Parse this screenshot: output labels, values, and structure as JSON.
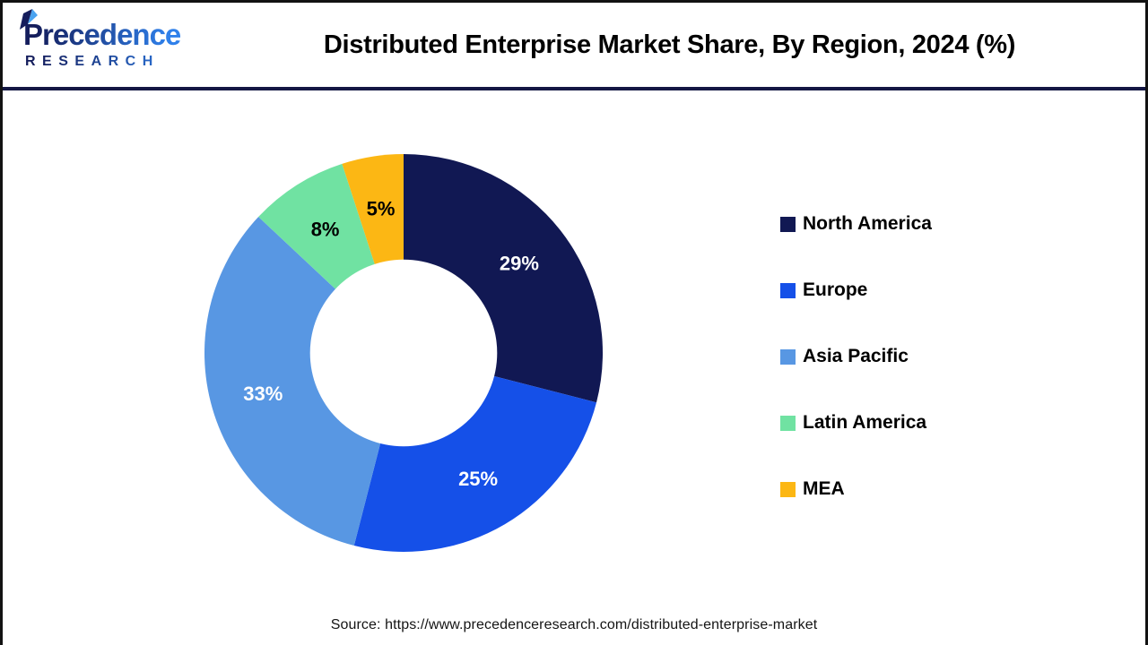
{
  "header": {
    "logo": {
      "name": "Precedence",
      "subname": "RESEARCH"
    },
    "title": "Distributed Enterprise Market Share, By Region, 2024 (%)"
  },
  "chart_data": {
    "type": "pie",
    "donut": true,
    "title": "Distributed Enterprise Market Share, By Region, 2024 (%)",
    "inner_radius_ratio": 0.47,
    "start_angle_deg": 0,
    "direction": "clockwise",
    "categories": [
      "North America",
      "Europe",
      "Asia Pacific",
      "Latin America",
      "MEA"
    ],
    "values": [
      29,
      25,
      33,
      8,
      5
    ],
    "slice_labels": [
      "29%",
      "25%",
      "33%",
      "8%",
      "5%"
    ],
    "colors": [
      "#111853",
      "#1550e8",
      "#5897e3",
      "#70e2a2",
      "#fcb714"
    ],
    "slice_label_colors": [
      "#ffffff",
      "#ffffff",
      "#ffffff",
      "#000000",
      "#000000"
    ],
    "legend_position": "right",
    "unit": "%"
  },
  "footer": {
    "source": "Source: https://www.precedenceresearch.com/distributed-enterprise-market"
  }
}
